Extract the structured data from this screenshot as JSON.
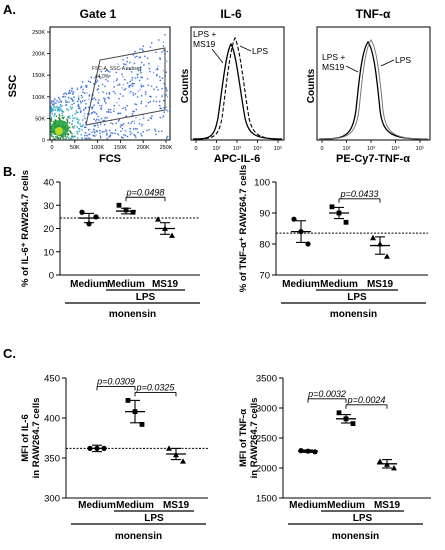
{
  "panel_letters": {
    "a": "A.",
    "b": "B.",
    "c": "C."
  },
  "flow": {
    "gate": {
      "title": "Gate 1",
      "ylabel": "SSC",
      "xlabel": "FCS",
      "y_ticks": [
        "250K",
        "200K",
        "150K",
        "100K",
        "50K",
        "0"
      ],
      "x_ticks": [
        "0",
        "50K",
        "100K",
        "150K",
        "200K",
        "250K"
      ],
      "gate_label": "FSC-A, SSC-A subset",
      "gate_pct": "44.0%"
    },
    "il6": {
      "title": "IL-6",
      "ylabel": "Counts",
      "xlabel": "APC-IL-6",
      "label_ms19_line1": "LPS +",
      "label_ms19_line2": "MS19",
      "label_lps": "LPS",
      "x_ticks": [
        "0",
        "10²",
        "10³",
        "10⁴",
        "10⁵"
      ]
    },
    "tnf": {
      "title": "TNF-α",
      "ylabel": "Counts",
      "xlabel": "PE-Cy7-TNF-α",
      "label_ms19_line1": "LPS +",
      "label_ms19_line2": "MS19",
      "label_lps": "LPS",
      "x_ticks": [
        "0",
        "10²",
        "10³",
        "10⁴",
        "10⁵"
      ]
    }
  },
  "common": {
    "categories": [
      "Medium",
      "Medium",
      "MS19"
    ],
    "lps_label": "LPS",
    "monensin_label": "monensin"
  },
  "chart_data": [
    {
      "type": "scatter",
      "panel": "B",
      "ylabel": "% of IL-6⁺ RAW264.7 cells",
      "ylim": [
        0,
        40
      ],
      "yticks": [
        0,
        10,
        20,
        30,
        40
      ],
      "baseline": 24.5,
      "groups": [
        {
          "category": "Medium",
          "mean": 24.5,
          "sem": 2,
          "marker": "circle",
          "points": [
            27,
            22,
            25
          ]
        },
        {
          "category": "Medium",
          "mean": 27.5,
          "sem": 1.2,
          "marker": "square",
          "points": [
            30,
            28,
            27
          ]
        },
        {
          "category": "MS19",
          "mean": 20,
          "sem": 2.5,
          "marker": "triangle",
          "points": [
            24,
            20,
            17
          ]
        }
      ],
      "comparisons": [
        {
          "from": 1,
          "to": 2,
          "label": "p=0.0498"
        }
      ]
    },
    {
      "type": "scatter",
      "panel": "B",
      "ylabel": "% of TNF-α⁺ RAW264.7 cells",
      "ylim": [
        70,
        100
      ],
      "yticks": [
        70,
        80,
        90,
        100
      ],
      "baseline": 83.5,
      "groups": [
        {
          "category": "Medium",
          "mean": 84,
          "sem": 3.5,
          "marker": "circle",
          "points": [
            88,
            84,
            80
          ]
        },
        {
          "category": "Medium",
          "mean": 90,
          "sem": 1.8,
          "marker": "square",
          "points": [
            92,
            90,
            87
          ]
        },
        {
          "category": "MS19",
          "mean": 79.5,
          "sem": 2.8,
          "marker": "triangle",
          "points": [
            82,
            80,
            76
          ]
        }
      ],
      "comparisons": [
        {
          "from": 1,
          "to": 2,
          "label": "p=0.0433"
        }
      ]
    },
    {
      "type": "scatter",
      "panel": "C",
      "ylabel_line1": "MFI of IL-6",
      "ylabel_line2": "in RAW264.7 cells",
      "ylim": [
        300,
        450
      ],
      "yticks": [
        300,
        350,
        400,
        450
      ],
      "baseline": 362,
      "groups": [
        {
          "category": "Medium",
          "mean": 362,
          "sem": 4,
          "marker": "circle",
          "points": [
            362,
            362,
            362
          ]
        },
        {
          "category": "Medium",
          "mean": 408,
          "sem": 14,
          "marker": "square",
          "points": [
            422,
            408,
            392
          ]
        },
        {
          "category": "MS19",
          "mean": 355,
          "sem": 7,
          "marker": "triangle",
          "points": [
            362,
            354,
            346
          ]
        }
      ],
      "comparisons": [
        {
          "from": 0,
          "to": 1,
          "label": "p=0.0309"
        },
        {
          "from": 1,
          "to": 2,
          "label": "p=0.0325"
        }
      ]
    },
    {
      "type": "scatter",
      "panel": "C",
      "ylabel_line1": "MFI of TNF-α",
      "ylabel_line2": "in RAW264.7 cells",
      "ylim": [
        1500,
        3500
      ],
      "yticks": [
        1500,
        2000,
        2500,
        3000,
        3500
      ],
      "baseline": null,
      "groups": [
        {
          "category": "Medium",
          "mean": 2280,
          "sem": 20,
          "marker": "circle",
          "points": [
            2290,
            2280,
            2270
          ]
        },
        {
          "category": "Medium",
          "mean": 2820,
          "sem": 70,
          "marker": "square",
          "points": [
            2920,
            2820,
            2740
          ]
        },
        {
          "category": "MS19",
          "mean": 2070,
          "sem": 70,
          "marker": "triangle",
          "points": [
            2110,
            2060,
            2000
          ]
        }
      ],
      "comparisons": [
        {
          "from": 0,
          "to": 1,
          "label": "p=0.0032"
        },
        {
          "from": 1,
          "to": 2,
          "label": "p=0.0024"
        }
      ]
    }
  ]
}
